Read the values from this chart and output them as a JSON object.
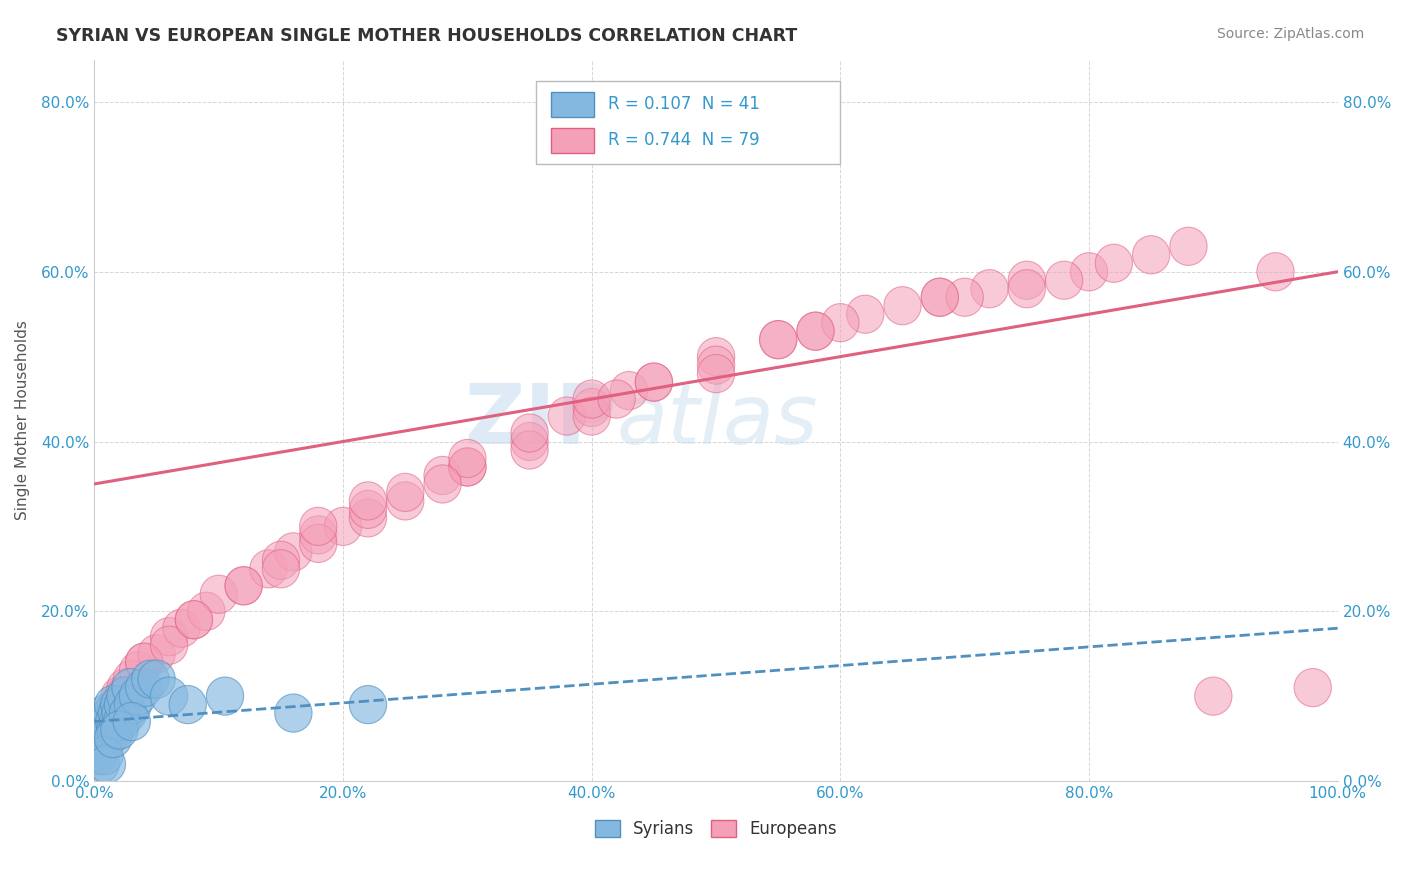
{
  "title": "SYRIAN VS EUROPEAN SINGLE MOTHER HOUSEHOLDS CORRELATION CHART",
  "source": "Source: ZipAtlas.com",
  "ylabel": "Single Mother Households",
  "syrians_color": "#85b8e0",
  "syrians_edge": "#5090c0",
  "europeans_color": "#f4a0b8",
  "europeans_edge": "#e06080",
  "syrian_line_color": "#5090c0",
  "european_line_color": "#e06080",
  "watermark_color": "#c8dff0",
  "background": "#ffffff",
  "grid_color": "#cccccc",
  "tick_color": "#3399cc",
  "legend_text_color": "#3399cc",
  "title_color": "#333333",
  "ylabel_color": "#555555",
  "syrians_x": [
    0.2,
    0.3,
    0.4,
    0.5,
    0.6,
    0.7,
    0.8,
    0.9,
    1.0,
    1.1,
    1.2,
    1.3,
    1.4,
    1.5,
    1.6,
    1.7,
    1.8,
    1.9,
    2.0,
    2.1,
    2.2,
    2.3,
    2.5,
    2.7,
    2.9,
    3.1,
    3.5,
    4.0,
    4.5,
    5.0,
    6.0,
    7.5,
    10.5,
    16.0,
    22.0,
    0.5,
    0.8,
    1.0,
    1.5,
    2.0,
    3.0
  ],
  "syrians_y": [
    3.0,
    4.0,
    5.0,
    6.0,
    5.0,
    4.0,
    7.0,
    6.0,
    8.0,
    5.0,
    7.0,
    6.0,
    8.0,
    9.0,
    7.0,
    6.0,
    8.0,
    7.0,
    9.0,
    8.0,
    7.0,
    9.0,
    10.0,
    8.0,
    11.0,
    9.0,
    10.0,
    11.0,
    12.0,
    12.0,
    10.0,
    9.0,
    10.0,
    8.0,
    9.0,
    2.0,
    3.0,
    2.0,
    5.0,
    6.0,
    7.0
  ],
  "europeans_x": [
    0.3,
    0.5,
    0.7,
    1.0,
    1.2,
    1.5,
    1.8,
    2.0,
    2.3,
    2.5,
    3.0,
    3.5,
    4.0,
    5.0,
    6.0,
    7.0,
    8.0,
    9.0,
    10.0,
    12.0,
    14.0,
    16.0,
    18.0,
    20.0,
    22.0,
    25.0,
    28.0,
    30.0,
    35.0,
    38.0,
    40.0,
    43.0,
    45.0,
    50.0,
    55.0,
    58.0,
    62.0,
    68.0,
    72.0,
    75.0,
    80.0,
    85.0,
    88.0,
    95.0,
    1.5,
    2.5,
    4.0,
    6.0,
    8.0,
    12.0,
    15.0,
    18.0,
    22.0,
    25.0,
    30.0,
    35.0,
    40.0,
    50.0,
    60.0,
    70.0,
    15.0,
    22.0,
    30.0,
    40.0,
    50.0,
    18.0,
    35.0,
    55.0,
    65.0,
    75.0,
    82.0,
    45.0,
    90.0,
    98.0,
    28.0,
    42.0,
    58.0,
    68.0,
    78.0
  ],
  "europeans_y": [
    3.0,
    4.0,
    5.0,
    6.0,
    7.0,
    8.0,
    9.0,
    10.0,
    10.0,
    11.0,
    12.0,
    13.0,
    14.0,
    15.0,
    17.0,
    18.0,
    19.0,
    20.0,
    22.0,
    23.0,
    25.0,
    27.0,
    29.0,
    30.0,
    31.0,
    33.0,
    36.0,
    37.0,
    40.0,
    43.0,
    44.0,
    46.0,
    47.0,
    50.0,
    52.0,
    53.0,
    55.0,
    57.0,
    58.0,
    59.0,
    60.0,
    62.0,
    63.0,
    60.0,
    8.0,
    10.0,
    14.0,
    16.0,
    19.0,
    23.0,
    26.0,
    28.0,
    32.0,
    34.0,
    37.0,
    39.0,
    43.0,
    49.0,
    54.0,
    57.0,
    25.0,
    33.0,
    38.0,
    45.0,
    48.0,
    30.0,
    41.0,
    52.0,
    56.0,
    58.0,
    61.0,
    47.0,
    10.0,
    11.0,
    35.0,
    45.0,
    53.0,
    57.0,
    59.0
  ],
  "european_line_x0": 0,
  "european_line_y0": 35.0,
  "european_line_x1": 100,
  "european_line_y1": 60.0,
  "syrian_line_x0": 0,
  "syrian_line_y0": 7.0,
  "syrian_line_x1": 100,
  "syrian_line_y1": 18.0,
  "xlim": [
    0,
    100
  ],
  "ylim": [
    0,
    85
  ],
  "xticks": [
    0,
    20,
    40,
    60,
    80,
    100
  ],
  "yticks": [
    0,
    20,
    40,
    60,
    80
  ]
}
